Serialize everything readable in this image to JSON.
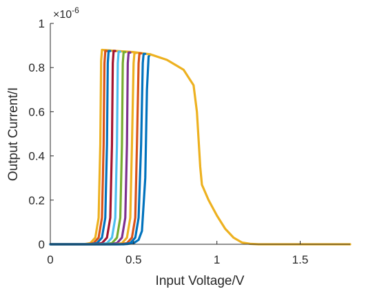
{
  "chart_data": {
    "type": "line",
    "title": "",
    "xlabel": "Input Voltage/V",
    "ylabel": "Output Current/I",
    "y_exponent_label": "×10",
    "y_exponent_power": "-6",
    "xlim": [
      0,
      1.8
    ],
    "ylim": [
      0,
      1
    ],
    "x_ticks": [
      0,
      0.5,
      1,
      1.5
    ],
    "x_tick_labels": [
      "0",
      "0.5",
      "1",
      "1.5"
    ],
    "y_ticks": [
      0,
      0.2,
      0.4,
      0.6,
      0.8,
      1
    ],
    "y_tick_labels": [
      "0",
      "0.2",
      "0.4",
      "0.6",
      "0.8",
      "1"
    ],
    "grid": false,
    "legend": "none",
    "series": [
      {
        "color": "#0072BD",
        "points": [
          [
            0,
            0
          ],
          [
            0.4,
            0
          ],
          [
            0.46,
            0.001
          ],
          [
            0.5,
            0.005
          ],
          [
            0.53,
            0.02
          ],
          [
            0.55,
            0.06
          ],
          [
            0.57,
            0.3
          ],
          [
            0.58,
            0.7
          ],
          [
            0.59,
            0.85
          ],
          [
            0.6,
            0.86
          ]
        ]
      },
      {
        "color": "#EDB120",
        "points": [
          [
            0,
            0
          ],
          [
            0.2,
            0
          ],
          [
            0.24,
            0.005
          ],
          [
            0.27,
            0.03
          ],
          [
            0.29,
            0.12
          ],
          [
            0.3,
            0.45
          ],
          [
            0.305,
            0.83
          ],
          [
            0.31,
            0.88
          ],
          [
            0.4,
            0.875
          ],
          [
            0.5,
            0.87
          ],
          [
            0.6,
            0.86
          ],
          [
            0.7,
            0.835
          ],
          [
            0.8,
            0.79
          ],
          [
            0.86,
            0.72
          ],
          [
            0.88,
            0.6
          ],
          [
            0.9,
            0.35
          ],
          [
            0.91,
            0.27
          ],
          [
            0.95,
            0.2
          ],
          [
            1.0,
            0.13
          ],
          [
            1.05,
            0.07
          ],
          [
            1.1,
            0.03
          ],
          [
            1.15,
            0.008
          ],
          [
            1.2,
            0.002
          ],
          [
            1.25,
            0
          ],
          [
            1.8,
            0
          ]
        ]
      },
      {
        "color": "#D95319",
        "points": [
          [
            0,
            0
          ],
          [
            0.22,
            0
          ],
          [
            0.26,
            0.005
          ],
          [
            0.29,
            0.03
          ],
          [
            0.31,
            0.12
          ],
          [
            0.32,
            0.45
          ],
          [
            0.325,
            0.82
          ],
          [
            0.33,
            0.875
          ],
          [
            0.34,
            0.875
          ]
        ]
      },
      {
        "color": "#0072BD",
        "points": [
          [
            0,
            0
          ],
          [
            0.24,
            0
          ],
          [
            0.28,
            0.005
          ],
          [
            0.31,
            0.03
          ],
          [
            0.33,
            0.12
          ],
          [
            0.34,
            0.45
          ],
          [
            0.345,
            0.82
          ],
          [
            0.35,
            0.875
          ],
          [
            0.36,
            0.875
          ]
        ]
      },
      {
        "color": "#A2142F",
        "points": [
          [
            0,
            0
          ],
          [
            0.27,
            0
          ],
          [
            0.31,
            0.005
          ],
          [
            0.34,
            0.03
          ],
          [
            0.36,
            0.12
          ],
          [
            0.37,
            0.45
          ],
          [
            0.375,
            0.82
          ],
          [
            0.38,
            0.875
          ],
          [
            0.39,
            0.875
          ]
        ]
      },
      {
        "color": "#4DBEEE",
        "points": [
          [
            0,
            0
          ],
          [
            0.3,
            0
          ],
          [
            0.34,
            0.005
          ],
          [
            0.37,
            0.03
          ],
          [
            0.39,
            0.12
          ],
          [
            0.4,
            0.45
          ],
          [
            0.405,
            0.82
          ],
          [
            0.41,
            0.872
          ],
          [
            0.42,
            0.872
          ]
        ]
      },
      {
        "color": "#77AC30",
        "points": [
          [
            0,
            0
          ],
          [
            0.33,
            0
          ],
          [
            0.37,
            0.005
          ],
          [
            0.4,
            0.03
          ],
          [
            0.42,
            0.12
          ],
          [
            0.43,
            0.45
          ],
          [
            0.435,
            0.82
          ],
          [
            0.44,
            0.87
          ],
          [
            0.45,
            0.87
          ]
        ]
      },
      {
        "color": "#7E2F8E",
        "points": [
          [
            0,
            0
          ],
          [
            0.36,
            0
          ],
          [
            0.4,
            0.005
          ],
          [
            0.43,
            0.03
          ],
          [
            0.45,
            0.12
          ],
          [
            0.46,
            0.45
          ],
          [
            0.465,
            0.82
          ],
          [
            0.47,
            0.868
          ],
          [
            0.48,
            0.868
          ]
        ]
      },
      {
        "color": "#EDB120",
        "points": [
          [
            0,
            0
          ],
          [
            0.39,
            0
          ],
          [
            0.43,
            0.005
          ],
          [
            0.46,
            0.03
          ],
          [
            0.48,
            0.12
          ],
          [
            0.49,
            0.45
          ],
          [
            0.5,
            0.82
          ],
          [
            0.505,
            0.866
          ],
          [
            0.515,
            0.866
          ]
        ]
      },
      {
        "color": "#D95319",
        "points": [
          [
            0,
            0
          ],
          [
            0.42,
            0
          ],
          [
            0.46,
            0.005
          ],
          [
            0.49,
            0.03
          ],
          [
            0.51,
            0.12
          ],
          [
            0.52,
            0.45
          ],
          [
            0.53,
            0.82
          ],
          [
            0.535,
            0.864
          ],
          [
            0.545,
            0.864
          ]
        ]
      },
      {
        "color": "#0072BD",
        "points": [
          [
            0,
            0
          ],
          [
            0.44,
            0
          ],
          [
            0.48,
            0.005
          ],
          [
            0.51,
            0.03
          ],
          [
            0.53,
            0.12
          ],
          [
            0.545,
            0.45
          ],
          [
            0.555,
            0.82
          ],
          [
            0.56,
            0.862
          ],
          [
            0.57,
            0.862
          ]
        ]
      }
    ]
  }
}
